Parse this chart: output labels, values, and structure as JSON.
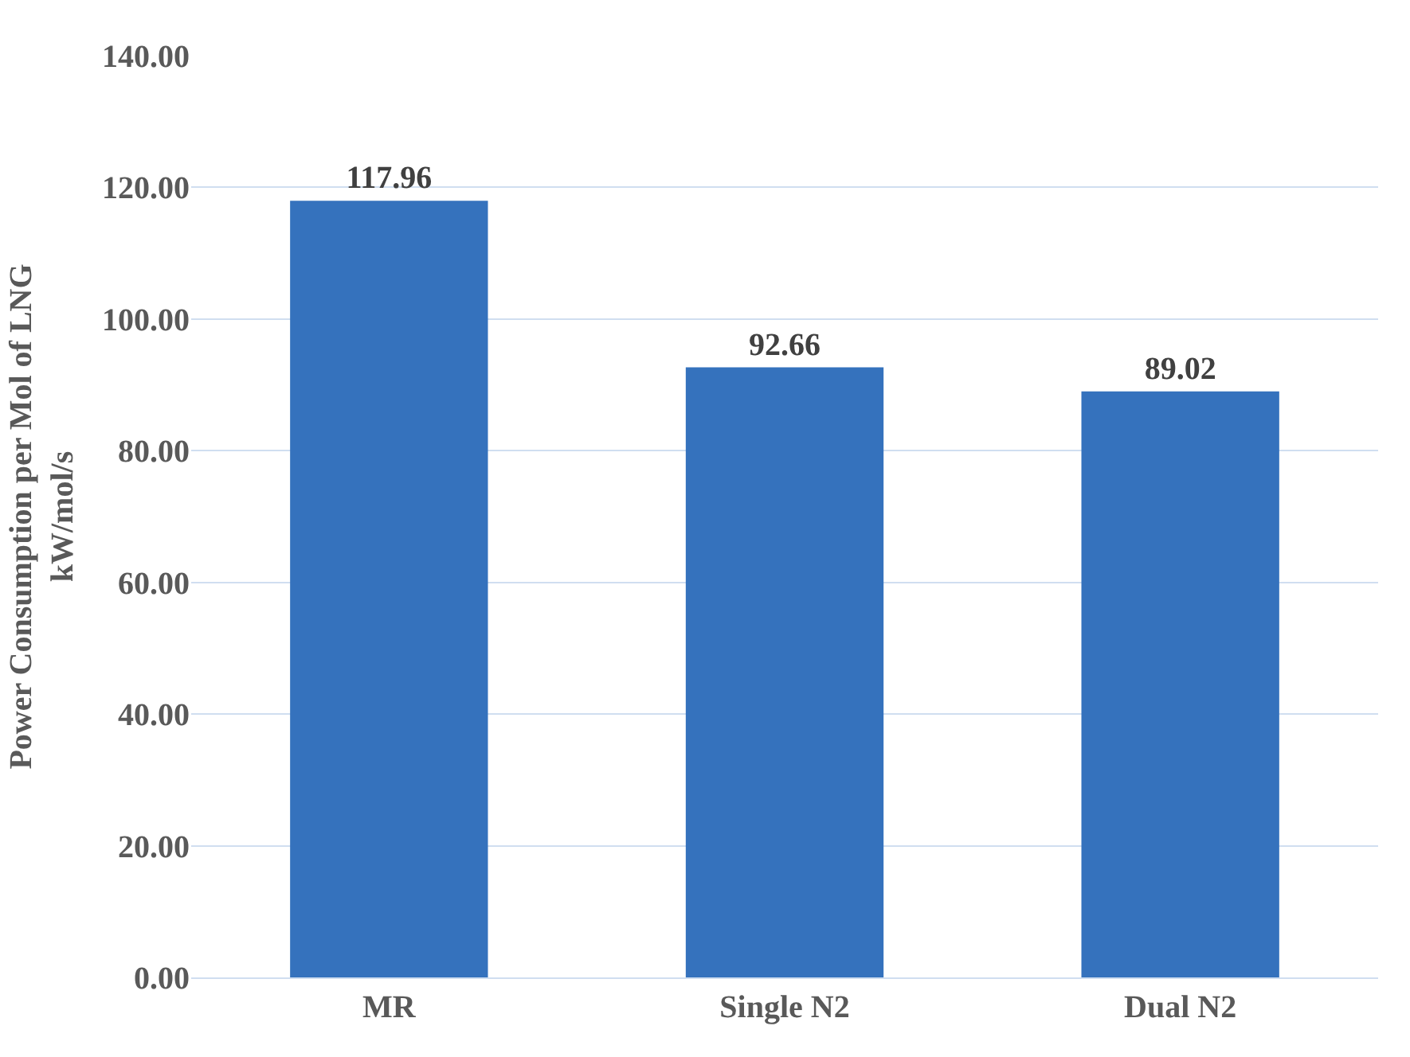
{
  "chart_data": {
    "type": "bar",
    "categories": [
      "MR",
      "Single N2",
      "Dual N2"
    ],
    "values": [
      117.96,
      92.66,
      89.02
    ],
    "color": "#3572bd",
    "ylabel": "Power Consumption per Mol of LNG\nkW/mol/s",
    "ylim": [
      0,
      140
    ],
    "yticks": [
      {
        "value": 0,
        "label": "0.00"
      },
      {
        "value": 20,
        "label": "20.00"
      },
      {
        "value": 40,
        "label": "40.00"
      },
      {
        "value": 60,
        "label": "60.00"
      },
      {
        "value": 80,
        "label": "80.00"
      },
      {
        "value": 100,
        "label": "100.00"
      },
      {
        "value": 120,
        "label": "120.00"
      },
      {
        "value": 140,
        "label": "140.00"
      }
    ],
    "data_labels": true,
    "grid": "y",
    "legend": false
  }
}
